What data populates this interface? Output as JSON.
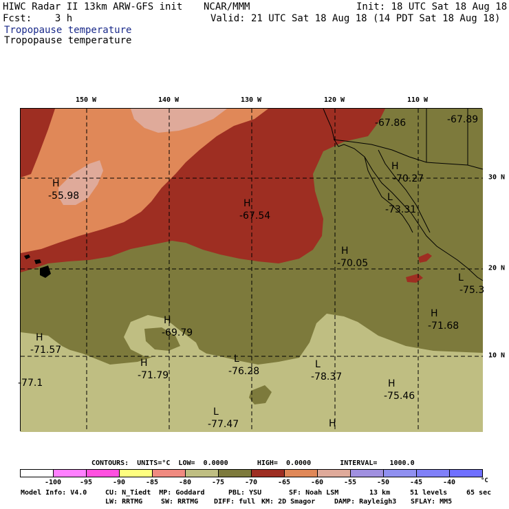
{
  "header": {
    "title": "HIWC Radar II 13km ARW-GFS init",
    "org": "NCAR/MMM",
    "init": "Init: 18 UTC Sat 18 Aug 18",
    "fcst": "Fcst:    3 h",
    "valid": "Valid: 21 UTC Sat 18 Aug 18 (14 PDT Sat 18 Aug 18)",
    "field_blue": "Tropopause temperature",
    "field_black": "Tropopause temperature"
  },
  "map": {
    "lon_labels": [
      "150 W",
      "140 W",
      "130 W",
      "120 W",
      "110 W"
    ],
    "lat_labels": [
      "30 N",
      "20 N",
      "10 N"
    ],
    "extrema": [
      {
        "type": "H",
        "value": "-55.98"
      },
      {
        "type": "H",
        "value": "-67.54"
      },
      {
        "type": "",
        "value": "-67.86"
      },
      {
        "type": "",
        "value": "-67.89"
      },
      {
        "type": "H",
        "value": "-70.27"
      },
      {
        "type": "L",
        "value": "-73.31"
      },
      {
        "type": "H",
        "value": "-70.05"
      },
      {
        "type": "L",
        "value": "-75.3"
      },
      {
        "type": "H",
        "value": "-71.68"
      },
      {
        "type": "H",
        "value": "-69.79"
      },
      {
        "type": "H",
        "value": "-71.57"
      },
      {
        "type": "",
        "value": "-77.1"
      },
      {
        "type": "H",
        "value": "-71.79"
      },
      {
        "type": "L",
        "value": "-76.28"
      },
      {
        "type": "L",
        "value": "-78.37"
      },
      {
        "type": "H",
        "value": "-75.46"
      },
      {
        "type": "L",
        "value": "-77.47"
      },
      {
        "type": "H",
        "value": ""
      }
    ],
    "colors": {
      "band_le_-80": "#bfbe82",
      "band_-80_-75": "#bfbe82",
      "band_-75_-70": "#7d7a3c",
      "band_-70_-65": "#9e2e22",
      "band_-65_-60": "#e08858",
      "band_-60_-55": "#dfaa9a"
    }
  },
  "contours": {
    "text": "CONTOURS:  UNITS=°C  LOW=  0.0000       HIGH=  0.0000       INTERVAL=   1000.0"
  },
  "legend": {
    "colors": [
      "#ffffff",
      "#ff80ff",
      "#ff50e0",
      "#ffff80",
      "#f08a80",
      "#bfbe82",
      "#7d7a3c",
      "#9e2e22",
      "#e08858",
      "#dfaa9a",
      "#a090e0",
      "#9090f0",
      "#8080f8",
      "#7070ff"
    ],
    "ticks": [
      "-100",
      "-95",
      "-90",
      "-85",
      "-80",
      "-75",
      "-70",
      "-65",
      "-60",
      "-55",
      "-50",
      "-45",
      "-40"
    ],
    "unit": "°C"
  },
  "footer": {
    "line1a": "Model Info: V4.0",
    "line1b": "CU: N_Tiedt  MP: Goddard",
    "line1c": "PBL: YSU",
    "line1d": "SF: Noah LSM",
    "line1e": "13 km",
    "line1f": "51 levels",
    "line1g": "65 sec",
    "line2a": "LW: RRTMG",
    "line2b": "SW: RRTMG",
    "line2c": "DIFF: full",
    "line2d": "KM: 2D Smagor",
    "line2e": "DAMP: Rayleigh3",
    "line2f": "SFLAY: MM5"
  }
}
